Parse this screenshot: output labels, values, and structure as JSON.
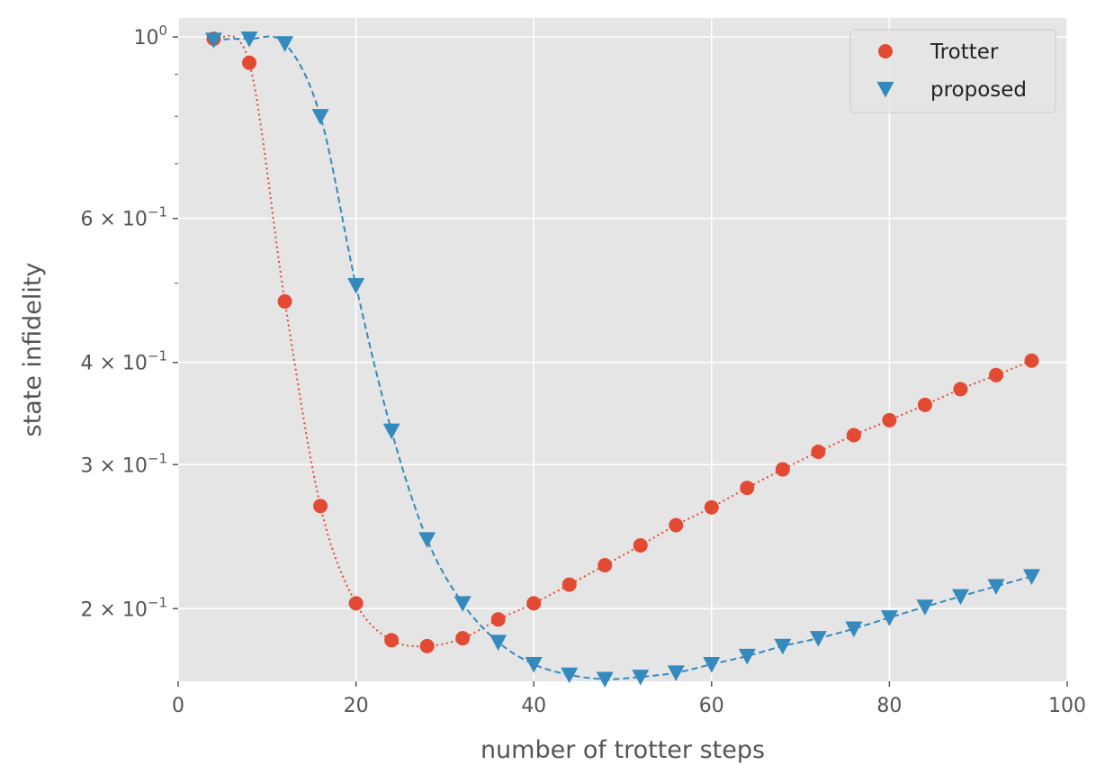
{
  "chart_data": {
    "type": "line",
    "title": "",
    "xlabel": "number of trotter steps",
    "ylabel": "state infidelity",
    "xlim": [
      0,
      100
    ],
    "ylim": [
      0.163,
      1.055
    ],
    "yscale": "log",
    "grid": true,
    "legend_position": "top-right",
    "x_ticks": [
      0,
      20,
      40,
      60,
      80,
      100
    ],
    "x_tick_labels": [
      "0",
      "20",
      "40",
      "60",
      "80",
      "100"
    ],
    "y_ticks": [
      {
        "value": 1.0,
        "base": "10",
        "exp": "0"
      },
      {
        "value": 0.6,
        "base": "6 × 10",
        "exp": "−1"
      },
      {
        "value": 0.4,
        "base": "4 × 10",
        "exp": "−1"
      },
      {
        "value": 0.3,
        "base": "3 × 10",
        "exp": "−1"
      },
      {
        "value": 0.2,
        "base": "2 × 10",
        "exp": "−1"
      }
    ],
    "y_minor_ticks": [
      0.9,
      0.8,
      0.7,
      0.5
    ],
    "x": [
      4,
      8,
      12,
      16,
      20,
      24,
      28,
      32,
      36,
      40,
      44,
      48,
      52,
      56,
      60,
      64,
      68,
      72,
      76,
      80,
      84,
      88,
      92,
      96
    ],
    "series": [
      {
        "name": "Trotter",
        "color": "#E24A33",
        "marker": "circle",
        "linestyle": "dotted",
        "values": [
          0.995,
          0.93,
          0.475,
          0.267,
          0.203,
          0.183,
          0.18,
          0.184,
          0.194,
          0.203,
          0.214,
          0.226,
          0.239,
          0.253,
          0.266,
          0.281,
          0.296,
          0.311,
          0.326,
          0.34,
          0.355,
          0.371,
          0.386,
          0.402
        ]
      },
      {
        "name": "proposed",
        "color": "#348ABD",
        "marker": "triangle-down",
        "linestyle": "dashed",
        "values": [
          0.992,
          0.995,
          0.982,
          0.8,
          0.497,
          0.33,
          0.243,
          0.203,
          0.182,
          0.171,
          0.166,
          0.164,
          0.165,
          0.167,
          0.171,
          0.175,
          0.18,
          0.184,
          0.189,
          0.195,
          0.201,
          0.207,
          0.213,
          0.219
        ]
      }
    ]
  }
}
